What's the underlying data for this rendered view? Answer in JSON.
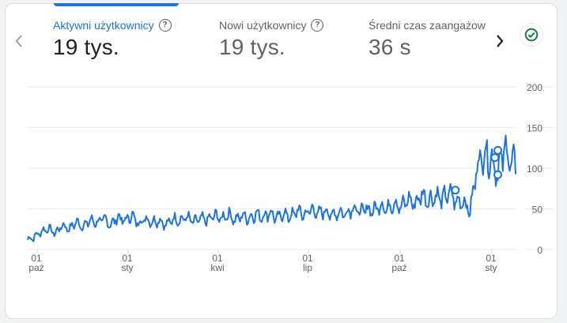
{
  "metrics": [
    {
      "label": "Aktywni użytkownicy",
      "value": "19 tys.",
      "active": true,
      "help": true
    },
    {
      "label": "Nowi użytkownicy",
      "value": "19 tys.",
      "active": false,
      "help": true
    },
    {
      "label": "Średni czas zaangażow",
      "value": "36 s",
      "active": false,
      "help": false
    }
  ],
  "nav": {
    "prev_icon": "chevron-left-icon",
    "next_icon": "chevron-right-icon"
  },
  "status": {
    "icon": "check-circle-icon",
    "color": "#188038"
  },
  "colors": {
    "accent": "#1a73e8",
    "line": "#1a73e8",
    "grid": "#e8eaed",
    "text_muted": "#5f6368"
  },
  "chart_data": {
    "type": "line",
    "title": "Aktywni użytkownicy",
    "xlabel": "",
    "ylabel": "",
    "ylim": [
      0,
      200
    ],
    "yticks": [
      0,
      50,
      100,
      150,
      200
    ],
    "y_axis_position": "right",
    "grid": true,
    "x_tick_labels": [
      {
        "day": "01",
        "month": "paź"
      },
      {
        "day": "01",
        "month": "sty"
      },
      {
        "day": "01",
        "month": "kwi"
      },
      {
        "day": "01",
        "month": "lip"
      },
      {
        "day": "01",
        "month": "paź"
      },
      {
        "day": "01",
        "month": "sty"
      }
    ],
    "series": [
      {
        "name": "Aktywni użytkownicy",
        "sampling": "weekly (approx., daily series downsampled)",
        "x_days_from_start": [
          0,
          7,
          14,
          21,
          28,
          35,
          42,
          49,
          56,
          63,
          70,
          77,
          84,
          91,
          98,
          105,
          112,
          119,
          126,
          133,
          140,
          147,
          154,
          161,
          168,
          175,
          182,
          189,
          196,
          203,
          210,
          217,
          224,
          231,
          238,
          245,
          252,
          259,
          266,
          273,
          280,
          287,
          294,
          301,
          308,
          315,
          322,
          329,
          336,
          343,
          350,
          357,
          364,
          371,
          378,
          385,
          392,
          399,
          406,
          413,
          420,
          427,
          434,
          441,
          448,
          455,
          462,
          469,
          476,
          483,
          490
        ],
        "values": [
          12,
          16,
          22,
          26,
          20,
          30,
          25,
          34,
          28,
          36,
          33,
          38,
          30,
          40,
          35,
          42,
          32,
          38,
          34,
          36,
          30,
          38,
          36,
          40,
          34,
          38,
          36,
          42,
          38,
          44,
          36,
          42,
          38,
          44,
          40,
          46,
          38,
          44,
          40,
          48,
          42,
          50,
          44,
          48,
          42,
          46,
          44,
          52,
          46,
          50,
          48,
          55,
          50,
          58,
          52,
          62,
          56,
          68,
          60,
          66,
          62,
          70,
          58,
          60,
          46,
          104,
          118,
          112,
          95,
          125,
          105
        ]
      }
    ],
    "annotations": [
      {
        "type": "marker",
        "x_days_from_start": 433,
        "value": 73
      },
      {
        "type": "marker",
        "x_days_from_start": 473,
        "value": 113
      },
      {
        "type": "marker",
        "x_days_from_start": 476,
        "value": 122
      },
      {
        "type": "marker",
        "x_days_from_start": 476,
        "value": 92
      }
    ]
  }
}
